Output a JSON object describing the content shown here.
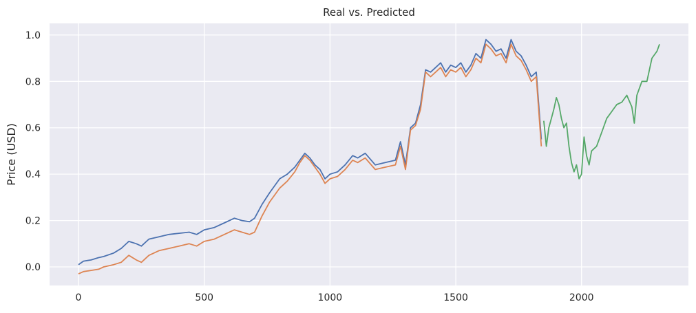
{
  "chart_data": {
    "type": "line",
    "title": "Real vs. Predicted",
    "xlabel": "",
    "ylabel": "Price (USD)",
    "xlim": [
      -115,
      2425
    ],
    "ylim": [
      -0.08,
      1.05
    ],
    "x_ticks": [
      0,
      500,
      1000,
      1500,
      2000
    ],
    "y_ticks": [
      0.0,
      0.2,
      0.4,
      0.6,
      0.8,
      1.0
    ],
    "x_tick_labels": [
      "0",
      "500",
      "1000",
      "1500",
      "2000"
    ],
    "y_tick_labels": [
      "0.0",
      "0.2",
      "0.4",
      "0.6",
      "0.8",
      "1.0"
    ],
    "grid": true,
    "background": "#eaeaf2",
    "series": [
      {
        "color": "#4c72b0",
        "x": [
          0,
          20,
          50,
          80,
          100,
          140,
          170,
          200,
          230,
          250,
          280,
          320,
          360,
          400,
          440,
          470,
          500,
          540,
          580,
          620,
          650,
          680,
          700,
          730,
          760,
          800,
          830,
          860,
          880,
          900,
          920,
          940,
          960,
          980,
          1000,
          1030,
          1060,
          1090,
          1110,
          1140,
          1180,
          1220,
          1260,
          1280,
          1300,
          1320,
          1340,
          1360,
          1380,
          1400,
          1420,
          1440,
          1460,
          1480,
          1500,
          1520,
          1540,
          1560,
          1580,
          1600,
          1620,
          1640,
          1660,
          1680,
          1700,
          1720,
          1740,
          1760,
          1780,
          1800,
          1820,
          1840
        ],
        "y": [
          0.01,
          0.025,
          0.03,
          0.04,
          0.045,
          0.06,
          0.08,
          0.11,
          0.1,
          0.09,
          0.12,
          0.13,
          0.14,
          0.145,
          0.15,
          0.14,
          0.16,
          0.17,
          0.19,
          0.21,
          0.2,
          0.195,
          0.21,
          0.27,
          0.32,
          0.38,
          0.4,
          0.43,
          0.46,
          0.49,
          0.47,
          0.44,
          0.42,
          0.38,
          0.4,
          0.41,
          0.44,
          0.48,
          0.47,
          0.49,
          0.44,
          0.45,
          0.46,
          0.54,
          0.44,
          0.6,
          0.62,
          0.7,
          0.85,
          0.84,
          0.86,
          0.88,
          0.84,
          0.87,
          0.86,
          0.88,
          0.84,
          0.87,
          0.92,
          0.9,
          0.98,
          0.96,
          0.93,
          0.94,
          0.9,
          0.98,
          0.93,
          0.91,
          0.87,
          0.82,
          0.84,
          0.55
        ]
      },
      {
        "color": "#dd8452",
        "x": [
          0,
          20,
          50,
          80,
          100,
          140,
          170,
          200,
          230,
          250,
          280,
          320,
          360,
          400,
          440,
          470,
          500,
          540,
          580,
          620,
          650,
          680,
          700,
          730,
          760,
          800,
          830,
          860,
          880,
          900,
          920,
          940,
          960,
          980,
          1000,
          1030,
          1060,
          1090,
          1110,
          1140,
          1180,
          1220,
          1260,
          1280,
          1300,
          1320,
          1340,
          1360,
          1380,
          1400,
          1420,
          1440,
          1460,
          1480,
          1500,
          1520,
          1540,
          1560,
          1580,
          1600,
          1620,
          1640,
          1660,
          1680,
          1700,
          1720,
          1740,
          1760,
          1780,
          1800,
          1820,
          1840
        ],
        "y": [
          -0.03,
          -0.02,
          -0.015,
          -0.01,
          0.0,
          0.01,
          0.02,
          0.05,
          0.03,
          0.02,
          0.05,
          0.07,
          0.08,
          0.09,
          0.1,
          0.09,
          0.11,
          0.12,
          0.14,
          0.16,
          0.15,
          0.14,
          0.15,
          0.22,
          0.28,
          0.34,
          0.37,
          0.41,
          0.45,
          0.48,
          0.46,
          0.43,
          0.4,
          0.36,
          0.38,
          0.39,
          0.42,
          0.46,
          0.45,
          0.47,
          0.42,
          0.43,
          0.44,
          0.52,
          0.42,
          0.59,
          0.61,
          0.68,
          0.84,
          0.82,
          0.84,
          0.86,
          0.82,
          0.85,
          0.84,
          0.86,
          0.82,
          0.85,
          0.9,
          0.88,
          0.96,
          0.94,
          0.91,
          0.92,
          0.88,
          0.96,
          0.91,
          0.89,
          0.85,
          0.8,
          0.82,
          0.52
        ]
      },
      {
        "color": "#55a868",
        "x": [
          1850,
          1860,
          1870,
          1880,
          1890,
          1900,
          1910,
          1920,
          1930,
          1940,
          1950,
          1960,
          1970,
          1980,
          1990,
          2000,
          2010,
          2020,
          2030,
          2040,
          2060,
          2080,
          2100,
          2120,
          2140,
          2160,
          2180,
          2200,
          2210,
          2220,
          2240,
          2260,
          2280,
          2300,
          2310
        ],
        "y": [
          0.63,
          0.52,
          0.6,
          0.64,
          0.68,
          0.73,
          0.7,
          0.64,
          0.6,
          0.62,
          0.52,
          0.45,
          0.41,
          0.44,
          0.38,
          0.4,
          0.56,
          0.48,
          0.44,
          0.5,
          0.52,
          0.58,
          0.64,
          0.67,
          0.7,
          0.71,
          0.74,
          0.69,
          0.62,
          0.74,
          0.8,
          0.8,
          0.9,
          0.93,
          0.96
        ]
      }
    ]
  }
}
